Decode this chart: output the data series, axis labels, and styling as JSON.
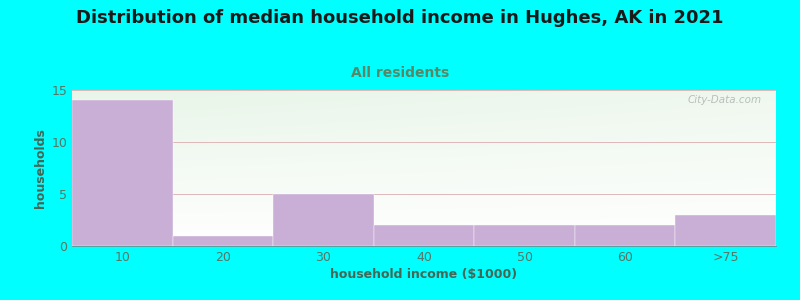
{
  "title": "Distribution of median household income in Hughes, AK in 2021",
  "subtitle": "All residents",
  "xlabel": "household income ($1000)",
  "ylabel": "households",
  "background_color": "#00FFFF",
  "plot_bg_color_topleft": "#e8f5e8",
  "plot_bg_color_bottomright": "#ffffff",
  "bar_color": "#c9aed6",
  "bar_edge_color": "#c9aed6",
  "categories": [
    "10",
    "20",
    "30",
    "40",
    "50",
    "60",
    ">75"
  ],
  "values": [
    14,
    1,
    5,
    2,
    2,
    2,
    3
  ],
  "bar_width": 1.0,
  "ylim": [
    0,
    15
  ],
  "yticks": [
    0,
    5,
    10,
    15
  ],
  "grid_color": "#ddb8b8",
  "watermark": "City-Data.com",
  "title_fontsize": 13,
  "subtitle_fontsize": 10,
  "axis_label_fontsize": 9,
  "tick_fontsize": 9,
  "tick_color": "#557766",
  "axis_label_color": "#446655",
  "title_color": "#1a1a1a",
  "subtitle_color": "#558866"
}
